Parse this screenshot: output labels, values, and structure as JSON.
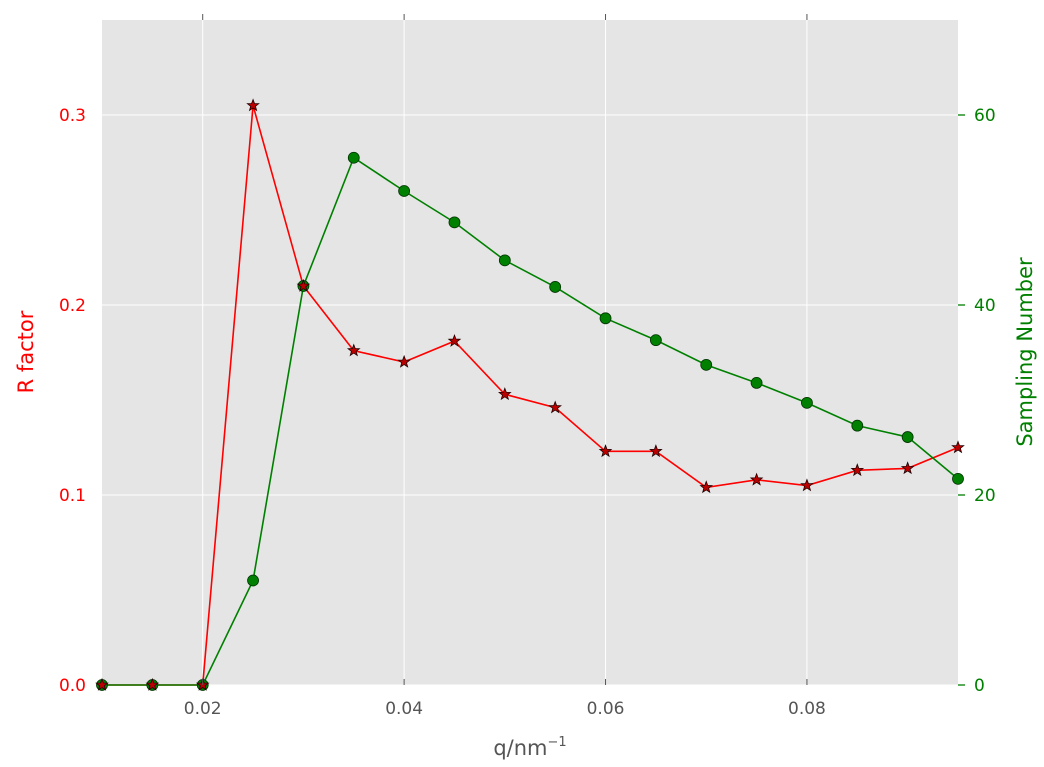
{
  "chart_data": {
    "type": "line",
    "x": [
      0.01,
      0.015,
      0.02,
      0.025,
      0.03,
      0.035,
      0.04,
      0.045,
      0.05,
      0.055,
      0.06,
      0.065,
      0.07,
      0.075,
      0.08,
      0.085,
      0.09,
      0.095
    ],
    "xlabel": "q/nm",
    "xlabel_sup": "−1",
    "xlim": [
      0.01,
      0.095
    ],
    "xticks": [
      0.02,
      0.04,
      0.06,
      0.08
    ],
    "xtick_labels": [
      "0.02",
      "0.04",
      "0.06",
      "0.08"
    ],
    "grid": true,
    "background": "#e5e5e5",
    "series": [
      {
        "name": "R factor",
        "axis": "left",
        "color": "#ff0000",
        "marker": "star",
        "marker_fill": "#bb0000",
        "values": [
          0.0,
          0.0,
          0.0,
          0.305,
          0.21,
          0.176,
          0.17,
          0.181,
          0.153,
          0.146,
          0.123,
          0.123,
          0.104,
          0.108,
          0.105,
          0.113,
          0.114,
          0.125
        ]
      },
      {
        "name": "Sampling Number",
        "axis": "right",
        "color": "#008000",
        "marker": "circle",
        "marker_fill": "#008000",
        "values": [
          0,
          0,
          0,
          11,
          42,
          55.5,
          52,
          48.7,
          44.7,
          41.9,
          38.6,
          36.3,
          33.7,
          31.8,
          29.7,
          27.3,
          26.1,
          21.7
        ]
      }
    ],
    "left_axis": {
      "label": "R factor",
      "color": "#ff0000",
      "ylim": [
        0,
        0.35
      ],
      "ticks": [
        0.0,
        0.1,
        0.2,
        0.3
      ],
      "tick_labels": [
        "0.0",
        "0.1",
        "0.2",
        "0.3"
      ]
    },
    "right_axis": {
      "label": "Sampling Number",
      "color": "#008000",
      "ylim": [
        0,
        70
      ],
      "ticks": [
        0,
        20,
        40,
        60
      ],
      "tick_labels": [
        "0",
        "20",
        "40",
        "60"
      ]
    }
  }
}
